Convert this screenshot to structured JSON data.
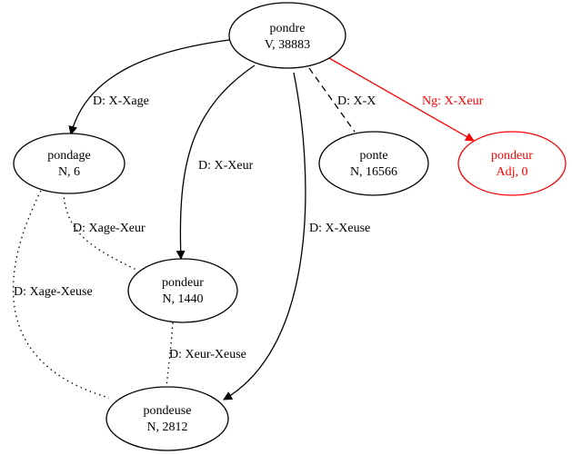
{
  "colors": {
    "default": "#000000",
    "highlight": "#ff0000",
    "background": "#ffffff"
  },
  "nodes": {
    "pondre": {
      "name": "pondre",
      "info": "V, 38883"
    },
    "pondage": {
      "name": "pondage",
      "info": "N, 6"
    },
    "ponte": {
      "name": "ponte",
      "info": "N, 16566"
    },
    "pondeur_adj": {
      "name": "pondeur",
      "info": "Adj, 0"
    },
    "pondeur_n": {
      "name": "pondeur",
      "info": "N, 1440"
    },
    "pondeuse": {
      "name": "pondeuse",
      "info": "N, 2812"
    }
  },
  "edges": {
    "pondre_pondage": {
      "label": "D: X-Xage",
      "style": "solid"
    },
    "pondre_pondeur_n": {
      "label": "D: X-Xeur",
      "style": "solid"
    },
    "pondre_pondeuse": {
      "label": "D: X-Xeuse",
      "style": "solid"
    },
    "pondre_ponte": {
      "label": "D: X-X",
      "style": "dashed"
    },
    "pondre_pondeur_adj": {
      "label": "Ng: X-Xeur",
      "style": "solid-highlight"
    },
    "pondage_pondeur_n": {
      "label": "D: Xage-Xeur",
      "style": "dotted"
    },
    "pondage_pondeuse": {
      "label": "D: Xage-Xeuse",
      "style": "dotted"
    },
    "pondeur_n_pondeuse": {
      "label": "D: Xeur-Xeuse",
      "style": "dotted"
    }
  }
}
